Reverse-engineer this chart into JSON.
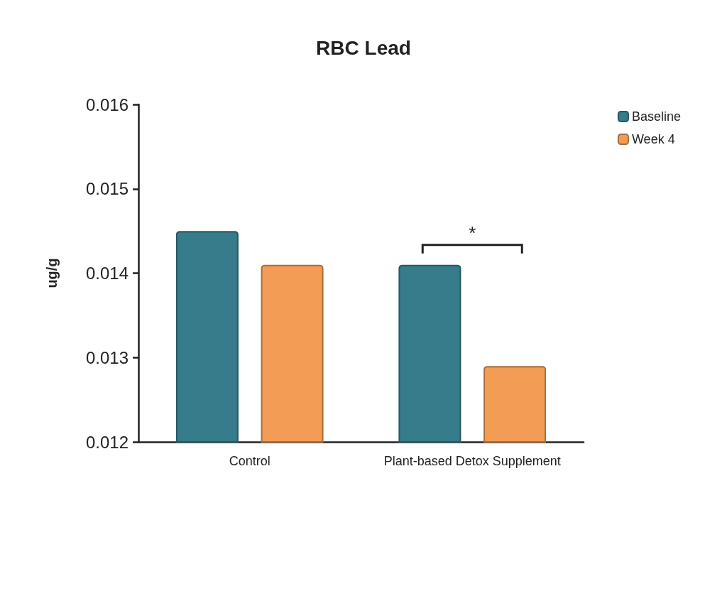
{
  "chart_data": {
    "type": "bar",
    "title": "RBC Lead",
    "ylabel": "ug/g",
    "categories": [
      "Control",
      "Plant-based Detox Supplement"
    ],
    "series": [
      {
        "name": "Baseline",
        "color": "#367c8a",
        "values": [
          0.0145,
          0.0141
        ]
      },
      {
        "name": "Week 4",
        "color": "#f29c55",
        "values": [
          0.0141,
          0.0129
        ]
      }
    ],
    "ylim": [
      0.012,
      0.016
    ],
    "yticks": [
      0.012,
      0.013,
      0.014,
      0.015,
      0.016
    ],
    "grid": false,
    "legend": "top right",
    "annotations": [
      "*"
    ]
  }
}
